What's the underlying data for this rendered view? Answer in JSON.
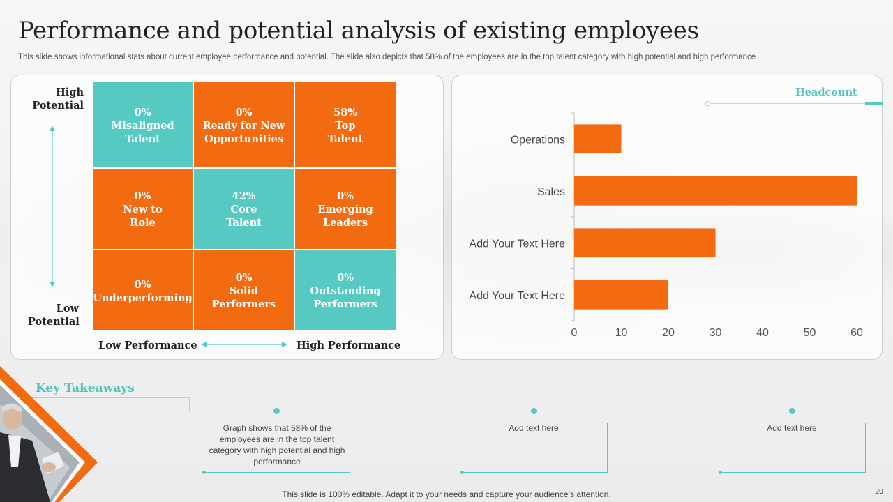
{
  "slide": {
    "title": "Performance and potential analysis of existing employees",
    "subtitle": "This slide shows informational stats about current employee performance and potential. The slide also depicts that 58% of the employees are in the top talent category with high potential and high performance",
    "page_number": "20",
    "footer": "This slide is 100% editable. Adapt it to your needs and capture your audience’s attention."
  },
  "matrix": {
    "y_high": [
      "High",
      "Potential"
    ],
    "y_low": [
      "Low",
      "Potential"
    ],
    "x_low": "Low Performance",
    "x_high": "High Performance",
    "cells": [
      {
        "lines": [
          "0%",
          "Misaligned",
          "Talent"
        ],
        "color": "teal"
      },
      {
        "lines": [
          "0%",
          "Ready for New",
          "Opportunities"
        ],
        "color": "orange"
      },
      {
        "lines": [
          "58%",
          "Top",
          "Talent"
        ],
        "color": "orange"
      },
      {
        "lines": [
          "0%",
          "New to",
          "Role"
        ],
        "color": "orange"
      },
      {
        "lines": [
          "42%",
          "Core",
          "Talent"
        ],
        "color": "teal"
      },
      {
        "lines": [
          "0%",
          "Emerging",
          "Leaders"
        ],
        "color": "orange"
      },
      {
        "lines": [
          "0%",
          "Underperforming"
        ],
        "color": "orange"
      },
      {
        "lines": [
          "0%",
          "Solid",
          "Performers"
        ],
        "color": "orange"
      },
      {
        "lines": [
          "0%",
          "Outstanding",
          "Performers"
        ],
        "color": "teal"
      }
    ],
    "colors": {
      "orange": "#f26b10",
      "teal": "#56c9c3"
    }
  },
  "chart_data": {
    "type": "bar",
    "orientation": "horizontal",
    "categories": [
      "Operations",
      "Sales",
      "Add Your Text Here",
      "Add Your Text Here"
    ],
    "series": [
      {
        "name": "Headcount",
        "values": [
          10,
          60,
          30,
          20
        ]
      }
    ],
    "xlim": [
      0,
      60
    ],
    "xticks": [
      0,
      10,
      20,
      30,
      40,
      50,
      60
    ],
    "legend": "top-right",
    "grid": false,
    "bar_color": "#f26b10"
  },
  "takeaways": {
    "title": "Key Takeaways",
    "items": [
      "Graph shows that 58% of the employees are in the top talent category with high potential and high performance",
      "Add text here",
      "Add text here"
    ]
  }
}
